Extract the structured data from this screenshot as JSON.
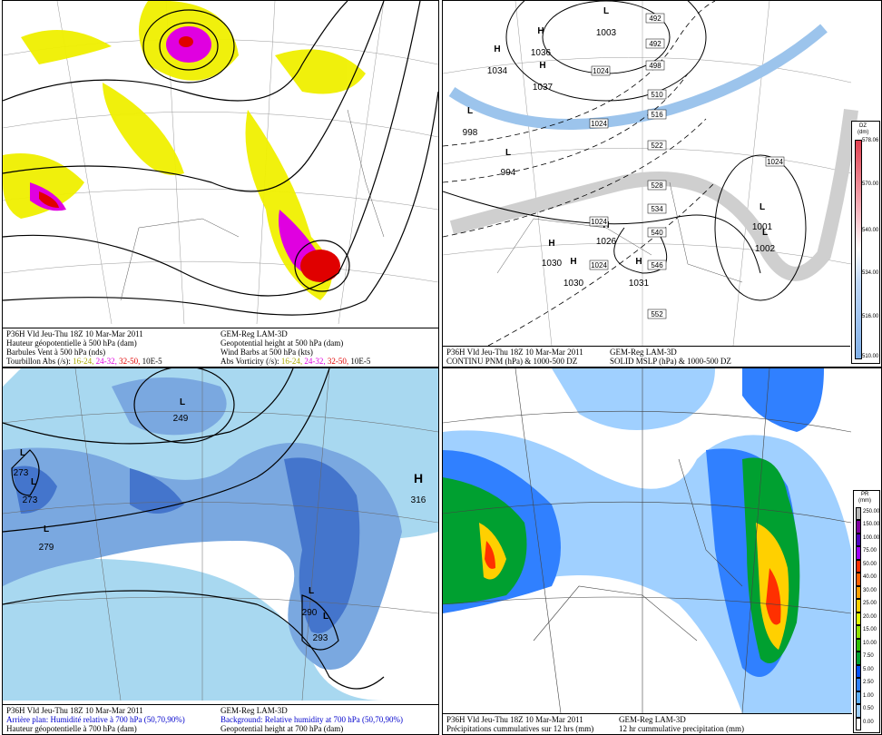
{
  "panels": {
    "vorticity": {
      "caption_left": [
        "P36H Vld Jeu-Thu 18Z 10 Mar-Mar 2011",
        "Hauteur géopotentielle à 500 hPa (dam)",
        "Barbules Vent à 500 hPa (nds)",
        "Tourbillon Abs (/s):"
      ],
      "caption_right": [
        "GEM-Reg LAM-3D",
        "Geopotential height at 500 hPa (dam)",
        "Wind Barbs at 500 hPa  (kts)",
        "Abs Vorticity (/s):"
      ],
      "ranges": [
        "16-24,",
        "24-32,",
        "32-50,",
        "10E-5"
      ],
      "range_colors": [
        "#a8a800",
        "#e000e0",
        "#e00000",
        "#000000"
      ]
    },
    "mslp": {
      "caption_left": [
        "P36H Vld Jeu-Thu 18Z 10 Mar-Mar 2011",
        "CONTINU PNM  (hPa) & 1000-500 DZ"
      ],
      "caption_right": [
        "GEM-Reg LAM-3D",
        "SOLID   MSLP (hPa) & 1000-500 DZ"
      ],
      "centers": [
        {
          "type": "L",
          "value": "1003"
        },
        {
          "type": "H",
          "value": "1036"
        },
        {
          "type": "H",
          "value": "1034"
        },
        {
          "type": "H",
          "value": "1037"
        },
        {
          "type": "L",
          "value": "998"
        },
        {
          "type": "L",
          "value": "994"
        },
        {
          "type": "H",
          "value": "1026"
        },
        {
          "type": "H",
          "value": "1030"
        },
        {
          "type": "H",
          "value": "1030"
        },
        {
          "type": "H",
          "value": "1031"
        },
        {
          "type": "L",
          "value": "1001"
        },
        {
          "type": "L",
          "value": "1002"
        }
      ],
      "isobar_labels": [
        "492",
        "492",
        "498",
        "1024",
        "510",
        "516",
        "1024",
        "522",
        "528",
        "534",
        "1024",
        "540",
        "1024",
        "546",
        "552",
        "1024"
      ],
      "colorbar_unit": [
        "DZ",
        "(dm)"
      ],
      "colorbar_ticks": [
        "578.06",
        "570.00",
        "540.00",
        "534.00",
        "516.00",
        "510.00"
      ]
    },
    "humidity": {
      "caption_left": [
        "P36H Vld Jeu-Thu 18Z 10 Mar-Mar 2011",
        "Arrière plan: Humidité relative à 700 hPa (50,70,90%)",
        "Hauteur géopotentielle à 700 hPa (dam)"
      ],
      "caption_right": [
        "GEM-Reg LAM-3D",
        "Background: Relative humidity at 700 hPa (50,70,90%)",
        "Geopotential height at 700 hPa (dam)"
      ],
      "centers": [
        {
          "type": "L",
          "value": "249"
        },
        {
          "type": "L",
          "value": "273"
        },
        {
          "type": "L",
          "value": "273"
        },
        {
          "type": "L",
          "value": "279"
        },
        {
          "type": "H",
          "value": "316"
        },
        {
          "type": "L",
          "value": "290"
        },
        {
          "type": "L",
          "value": "293"
        }
      ]
    },
    "precip": {
      "caption_left": [
        "P36H Vld Jeu-Thu 18Z 10 Mar-Mar 2011",
        "Précipitations cummulatives sur 12 hrs (mm)"
      ],
      "caption_right": [
        "GEM-Reg LAM-3D",
        "12 hr cummulative precipitation      (mm)"
      ],
      "colorbar_unit": [
        "PR",
        "(mm)"
      ],
      "colorbar_ticks": [
        "250.00",
        "150.00",
        "100.00",
        "75.00",
        "50.00",
        "40.00",
        "30.00",
        "25.00",
        "20.00",
        "15.00",
        "10.00",
        "7.50",
        "5.00",
        "2.50",
        "1.00",
        "0.50",
        "0.00"
      ],
      "colorbar_colors": [
        "#b8b8b8",
        "#8000a0",
        "#5000c0",
        "#a000ff",
        "#ff3000",
        "#ff6000",
        "#ffa000",
        "#ffd000",
        "#e0ff00",
        "#90e000",
        "#30c000",
        "#00a030",
        "#0050ff",
        "#3080ff",
        "#60b0ff",
        "#a0d0ff",
        "#ffffff"
      ]
    }
  }
}
